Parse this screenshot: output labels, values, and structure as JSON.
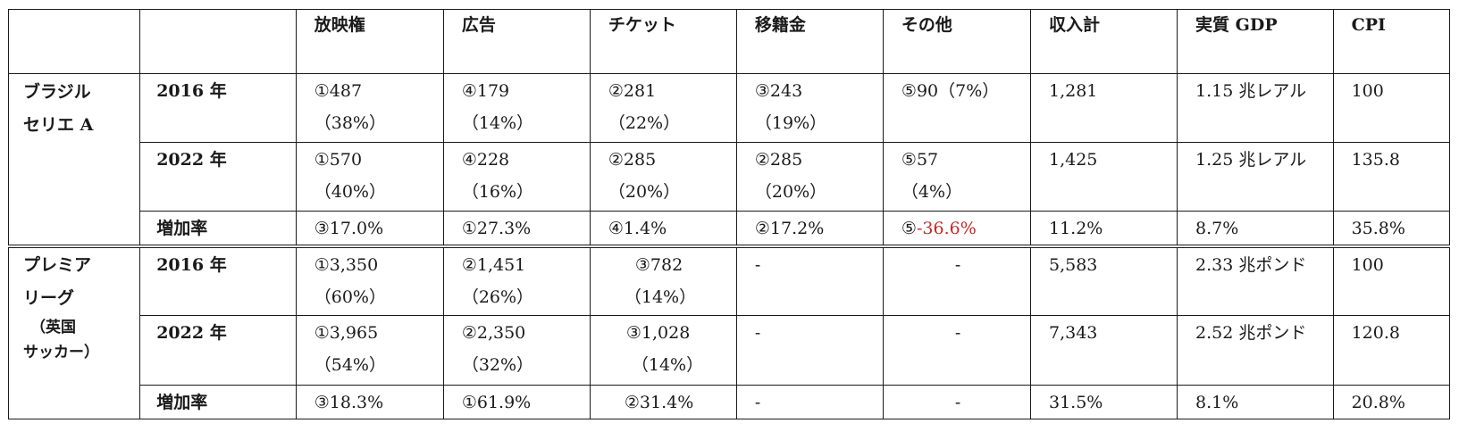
{
  "headers": [
    "",
    "",
    "放映権",
    "広告",
    "チケット",
    "移籍金",
    "その他",
    "収入計",
    "実質 GDP",
    "CPI"
  ],
  "groups": [
    {
      "name_lines": [
        "ブラジル",
        "セリエ A"
      ],
      "rows": [
        {
          "label": "2016 年",
          "cells": [
            [
              "①487",
              "（38%）"
            ],
            [
              "④179",
              "（14%）"
            ],
            [
              "②281",
              "（22%）"
            ],
            [
              "③243",
              "（19%）"
            ],
            [
              "⑤90（7%）"
            ],
            [
              "1,281"
            ],
            [
              "1.15 兆レアル"
            ],
            [
              "100"
            ]
          ]
        },
        {
          "label": "2022 年",
          "cells": [
            [
              "①570",
              "（40%）"
            ],
            [
              "④228",
              "（16%）"
            ],
            [
              "②285",
              "（20%）"
            ],
            [
              "②285",
              "（20%）"
            ],
            [
              "⑤57",
              "（4%）"
            ],
            [
              "1,425"
            ],
            [
              "1.25 兆レアル"
            ],
            [
              "135.8"
            ]
          ]
        },
        {
          "label": "増加率",
          "cells": [
            [
              "③17.0%"
            ],
            [
              "①27.3%"
            ],
            [
              "④1.4%"
            ],
            [
              "②17.2%"
            ],
            [
              "⑤",
              "-36.6%"
            ],
            [
              "11.2%"
            ],
            [
              "8.7%"
            ],
            [
              "35.8%"
            ]
          ]
        }
      ]
    },
    {
      "name_lines": [
        "プレミア",
        "リーグ",
        "（英国",
        "サッカー）"
      ],
      "rows": [
        {
          "label": "2016 年",
          "cells": [
            [
              "①3,350",
              "（60%）"
            ],
            [
              "②1,451",
              "（26%）"
            ],
            [
              "③782",
              "（14%）"
            ],
            [
              "-"
            ],
            [
              "-"
            ],
            [
              "5,583"
            ],
            [
              "2.33 兆ポンド"
            ],
            [
              "100"
            ]
          ]
        },
        {
          "label": "2022 年",
          "cells": [
            [
              "①3,965",
              "（54%）"
            ],
            [
              "②2,350",
              "（32%）"
            ],
            [
              "③1,028",
              "（14%）"
            ],
            [
              "-"
            ],
            [
              "-"
            ],
            [
              "7,343"
            ],
            [
              "2.52 兆ポンド"
            ],
            [
              "120.8"
            ]
          ]
        },
        {
          "label": "増加率",
          "cells": [
            [
              "③18.3%"
            ],
            [
              "①61.9%"
            ],
            [
              "②31.4%"
            ],
            [
              "-"
            ],
            [
              "-"
            ],
            [
              "31.5%"
            ],
            [
              "8.1%"
            ],
            [
              "20.8%"
            ]
          ]
        }
      ]
    }
  ],
  "colors": {
    "negative": "#c62828",
    "border": "#1a1a1a"
  }
}
